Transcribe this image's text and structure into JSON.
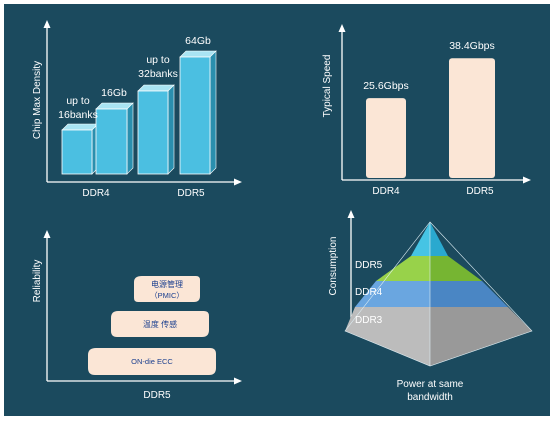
{
  "colors": {
    "background": "#1b4a5e",
    "bar_front": "#4bbfe1",
    "bar_top": "#a9e4f3",
    "bar_side": "#2a8fae",
    "pill": "#fbe6d6",
    "pill_text": "#1b3f8f",
    "pyramid_top_left": "#46c4e4",
    "pyramid_top_right": "#2aa9cf",
    "pyramid_mid_left": "#98d24a",
    "pyramid_mid_right": "#76b532",
    "pyramid_low_left": "#6aa6e0",
    "pyramid_low_right": "#4a86c4",
    "pyramid_base_left": "#bcbcbc",
    "pyramid_base_right": "#999999",
    "axis": "#ffffff"
  },
  "panels": {
    "density": {
      "ylabel": "Chip Max Density",
      "categories": [
        "DDR4",
        "DDR5"
      ],
      "bars": [
        {
          "annotation": [
            "up to",
            "16banks"
          ]
        },
        {
          "annotation": [
            "16Gb"
          ]
        },
        {
          "annotation": [
            "up to",
            "32banks"
          ]
        },
        {
          "annotation": [
            "64Gb"
          ]
        }
      ]
    },
    "speed": {
      "ylabel": "Typical Speed",
      "categories": [
        "DDR4",
        "DDR5"
      ],
      "bars": [
        {
          "label": "25.6Gbps"
        },
        {
          "label": "38.4Gbps"
        }
      ]
    },
    "reliability": {
      "ylabel": "Reliability",
      "xlabel": "DDR5",
      "pills": [
        {
          "line1": "电源管理",
          "line2": "（PMIC）"
        },
        {
          "line1": "温度 传感"
        },
        {
          "line1": "ON-die ECC"
        }
      ]
    },
    "consumption": {
      "ylabel": "Consumption",
      "layers": [
        "DDR5",
        "DDR4",
        "DDR3"
      ],
      "caption": [
        "Power at same",
        "bandwidth"
      ]
    }
  },
  "chart_data": {
    "type": "bar",
    "categories": [
      "DDR4",
      "DDR5"
    ],
    "series": [
      {
        "name": "Typical Speed",
        "values": [
          25.6,
          38.4
        ]
      }
    ],
    "ylabel": "Typical Speed"
  }
}
